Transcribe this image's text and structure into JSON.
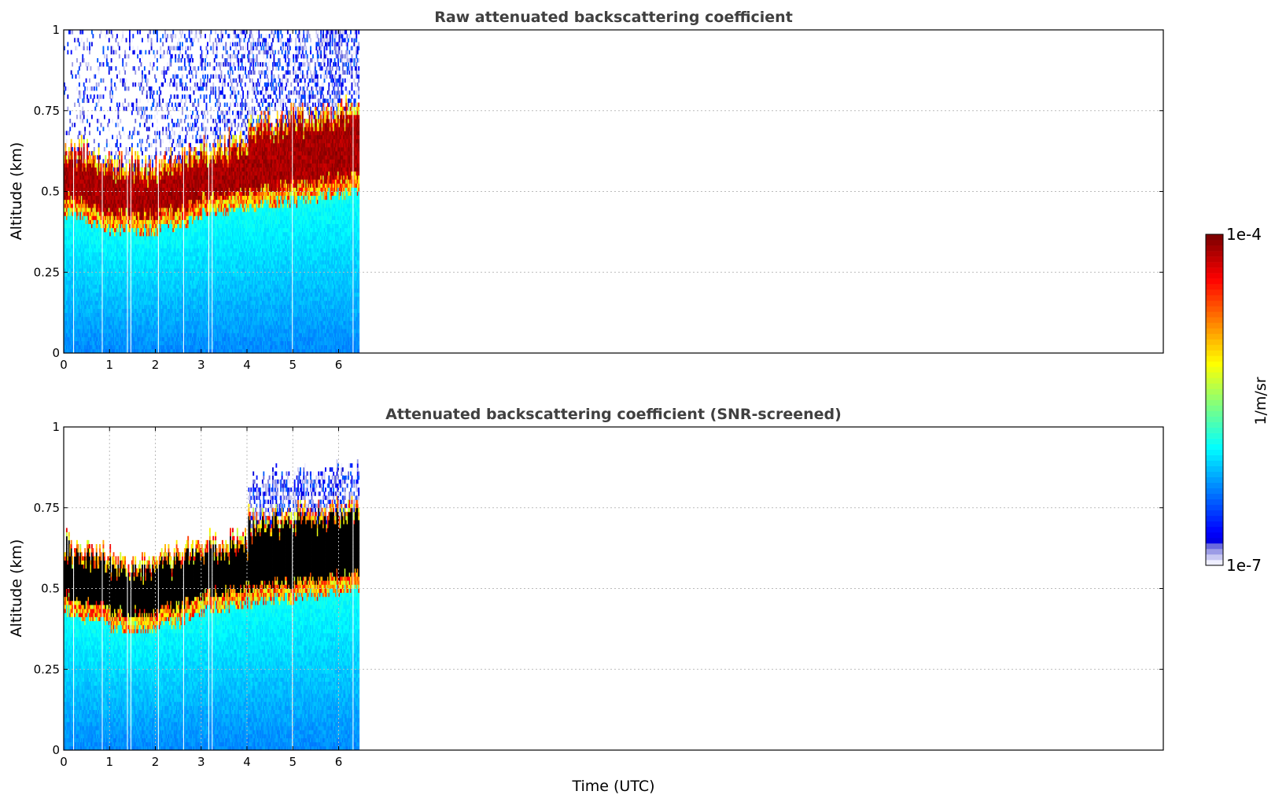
{
  "figure": {
    "xlabel": "Time (UTC)"
  },
  "colorbar": {
    "label": "1/m/sr",
    "min_label": "1e-7",
    "max_label": "1e-4",
    "colormap": "jet",
    "low_colors": [
      "#eeeeff",
      "#c8c8f2",
      "#9c9ce6",
      "#6a6ade"
    ]
  },
  "chart_data": [
    {
      "type": "heatmap",
      "title": "Raw attenuated backscattering coefficient",
      "ylabel": "Altitude (km)",
      "xlim": [
        0,
        24
      ],
      "ylim": [
        0,
        1
      ],
      "xticks": [
        "0",
        "1",
        "2",
        "3",
        "4",
        "5",
        "6"
      ],
      "yticks": [
        "0",
        "0.25",
        "0.5",
        "0.75",
        "1"
      ],
      "data_end_time": 6.45,
      "x_gridlines": false,
      "y_gridlines": true,
      "screened": false
    },
    {
      "type": "heatmap",
      "title": "Attenuated backscattering coefficient (SNR-screened)",
      "ylabel": "Altitude (km)",
      "xlim": [
        0,
        24
      ],
      "ylim": [
        0,
        1
      ],
      "xticks": [
        "0",
        "1",
        "2",
        "3",
        "4",
        "5",
        "6"
      ],
      "yticks": [
        "0",
        "0.25",
        "0.5",
        "0.75",
        "1"
      ],
      "data_end_time": 6.45,
      "x_gridlines": true,
      "y_gridlines": true,
      "screened": true,
      "saturated_color": "#000000"
    }
  ]
}
